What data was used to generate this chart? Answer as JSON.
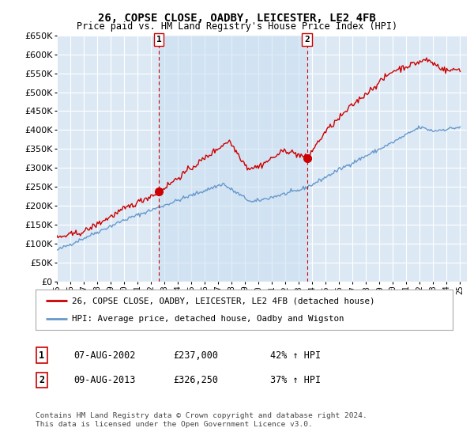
{
  "title": "26, COPSE CLOSE, OADBY, LEICESTER, LE2 4FB",
  "subtitle": "Price paid vs. HM Land Registry's House Price Index (HPI)",
  "ylim": [
    0,
    650000
  ],
  "yticks": [
    0,
    50000,
    100000,
    150000,
    200000,
    250000,
    300000,
    350000,
    400000,
    450000,
    500000,
    550000,
    600000,
    650000
  ],
  "xlim_start": 1995.0,
  "xlim_end": 2025.5,
  "background_color": "#dce9f5",
  "highlight_color": "#c8ddf0",
  "grid_color": "#ffffff",
  "sale1_date": 2002.6,
  "sale1_price": 237000,
  "sale1_label": "1",
  "sale2_date": 2013.6,
  "sale2_price": 326250,
  "sale2_label": "2",
  "vline_color": "#cc0000",
  "hpi_color": "#6699cc",
  "price_color": "#cc0000",
  "legend_entry1": "26, COPSE CLOSE, OADBY, LEICESTER, LE2 4FB (detached house)",
  "legend_entry2": "HPI: Average price, detached house, Oadby and Wigston",
  "table_row1": [
    "1",
    "07-AUG-2002",
    "£237,000",
    "42% ↑ HPI"
  ],
  "table_row2": [
    "2",
    "09-AUG-2013",
    "£326,250",
    "37% ↑ HPI"
  ],
  "footnote1": "Contains HM Land Registry data © Crown copyright and database right 2024.",
  "footnote2": "This data is licensed under the Open Government Licence v3.0."
}
